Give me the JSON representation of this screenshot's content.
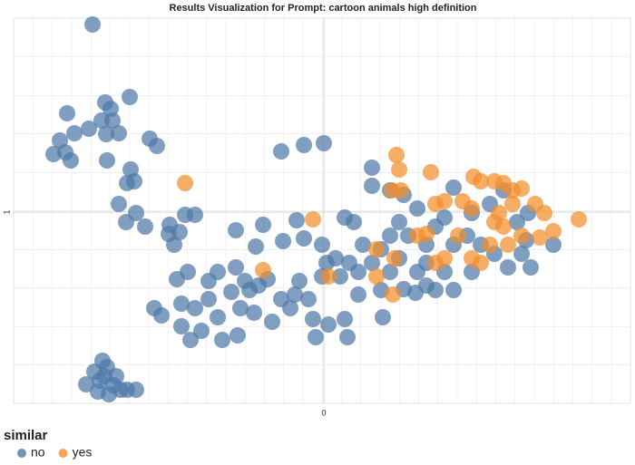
{
  "chart_data": {
    "type": "scatter",
    "title": "Results Visualization for Prompt: cartoon animals high definition",
    "legend_title": "similar",
    "legend": "bottom-left",
    "grid": true,
    "xlim": [
      -1.71,
      1.69
    ],
    "ylim": [
      -0.055,
      2.07
    ],
    "xticks": [
      0
    ],
    "yticks": [
      1
    ],
    "series": [
      {
        "name": "no",
        "color": "#4e79a7",
        "x": [
          -1.275,
          -1.415,
          -1.205,
          -1.175,
          -1.165,
          -1.225,
          -1.2,
          -1.13,
          -1.07,
          -1.375,
          -1.455,
          -1.425,
          -1.49,
          -1.395,
          -1.195,
          -1.295,
          -0.96,
          -0.92,
          -1.065,
          -1.085,
          -1.045,
          -1.13,
          -1.09,
          -1.035,
          -0.985,
          -1.22,
          -1.265,
          -1.195,
          -1.235,
          -1.31,
          -1.245,
          -1.16,
          -1.12,
          -1.185,
          -1.085,
          -1.035,
          -1.21,
          -1.145,
          -0.765,
          -0.71,
          -0.85,
          -0.795,
          -0.825,
          -0.855,
          -0.485,
          -0.335,
          -0.81,
          -0.75,
          -0.635,
          -0.585,
          -0.485,
          -0.435,
          -0.51,
          -0.36,
          -0.31,
          -0.375,
          -0.225,
          -0.15,
          -0.11,
          -0.01,
          -0.235,
          -0.11,
          0,
          -0.935,
          -0.895,
          -0.785,
          -0.71,
          -0.785,
          -0.735,
          -0.675,
          -0.585,
          -0.56,
          -0.475,
          -0.385,
          -0.285,
          -0.185,
          -0.085,
          -0.045,
          -0.06,
          0.025,
          0.13,
          0.115,
          -0.135,
          -0.01,
          0.015,
          0.065,
          0.14,
          0.19,
          0.215,
          0.265,
          0.315,
          0.365,
          0.115,
          0.165,
          0.265,
          0.265,
          0.365,
          0.44,
          0.515,
          0.415,
          0.365,
          0.465,
          0.565,
          0.615,
          0.665,
          0.715,
          0.815,
          0.79,
          0.865,
          0.94,
          1.015,
          1.09,
          1.14,
          1.265,
          1.115,
          0.515,
          0.565,
          0.665,
          0.715,
          0.815,
          0.565,
          0.415,
          0.315,
          0.325,
          0.505,
          0.615,
          0.915,
          0.99,
          1.125,
          1.065,
          0.715,
          0.19,
          0.09,
          0.44,
          -0.235,
          -0.41,
          -0.46,
          -0.635,
          -0.16
        ],
        "y": [
          2.035,
          1.545,
          1.605,
          1.57,
          1.505,
          1.505,
          1.43,
          1.435,
          1.635,
          1.435,
          1.395,
          1.33,
          1.32,
          1.285,
          1.285,
          1.46,
          1.405,
          1.365,
          1.235,
          1.16,
          1.17,
          1.045,
          0.945,
          0.995,
          0.92,
          0.18,
          0.12,
          0.145,
          0.07,
          0.05,
          0.01,
          0.045,
          0.02,
          -0.005,
          0.02,
          0.02,
          0.095,
          0.095,
          0.985,
          0.985,
          0.93,
          0.89,
          0.82,
          0.88,
          0.9,
          0.93,
          0.63,
          0.67,
          0.62,
          0.67,
          0.695,
          0.62,
          0.56,
          0.595,
          0.63,
          0.81,
          0.84,
          0.955,
          0.855,
          0.82,
          1.335,
          1.37,
          1.38,
          0.47,
          0.43,
          0.495,
          0.47,
          0.37,
          0.295,
          0.345,
          0.42,
          0.295,
          0.32,
          0.445,
          0.395,
          0.47,
          0.52,
          0.31,
          0.41,
          0.38,
          0.31,
          0.41,
          0.62,
          0.645,
          0.72,
          0.745,
          0.72,
          0.67,
          0.82,
          0.72,
          0.795,
          0.67,
          0.97,
          0.945,
          1.145,
          1.245,
          1.12,
          1.095,
          1.02,
          0.945,
          0.87,
          0.87,
          0.82,
          0.92,
          0.97,
          1.135,
          0.995,
          0.87,
          0.82,
          0.77,
          0.695,
          0.77,
          0.695,
          0.82,
          0.845,
          0.67,
          0.595,
          0.67,
          0.57,
          0.67,
          0.72,
          0.745,
          0.57,
          0.42,
          0.555,
          0.57,
          1.045,
          1.12,
          0.995,
          0.945,
          0.82,
          0.545,
          0.645,
          0.575,
          0.52,
          0.57,
          0.47,
          0.52,
          0.545
        ]
      },
      {
        "name": "yes",
        "color": "#f28e2b",
        "x": [
          -0.765,
          0.4,
          0.415,
          0.59,
          0.375,
          0.425,
          0.825,
          0.865,
          0.94,
          0.99,
          1.04,
          1.09,
          1.04,
          0.965,
          1.165,
          1.215,
          1.09,
          1.19,
          1.265,
          1.405,
          0.615,
          0.665,
          0.765,
          0.815,
          0.94,
          0.99,
          1.015,
          0.915,
          0.815,
          0.615,
          0.665,
          0.565,
          0.515,
          0.29,
          0.39,
          0.29,
          0.38,
          -0.06,
          0.025,
          -0.335,
          0.74,
          0.865
        ],
        "y": [
          1.16,
          1.315,
          1.235,
          1.22,
          1.12,
          1.12,
          1.195,
          1.17,
          1.17,
          1.16,
          1.12,
          1.13,
          1.045,
          0.995,
          1.045,
          0.995,
          0.87,
          0.86,
          0.895,
          0.96,
          1.045,
          1.06,
          1.06,
          1.02,
          0.945,
          0.92,
          0.82,
          0.82,
          0.745,
          0.72,
          0.745,
          0.88,
          0.87,
          0.795,
          0.745,
          0.645,
          0.545,
          0.96,
          0.645,
          0.68,
          0.87,
          0.72
        ]
      }
    ]
  }
}
